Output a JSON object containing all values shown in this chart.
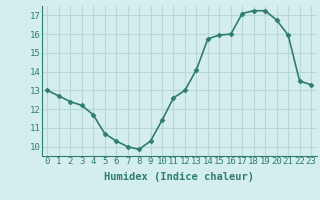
{
  "x": [
    0,
    1,
    2,
    3,
    4,
    5,
    6,
    7,
    8,
    9,
    10,
    11,
    12,
    13,
    14,
    15,
    16,
    17,
    18,
    19,
    20,
    21,
    22,
    23
  ],
  "y": [
    13.0,
    12.7,
    12.4,
    12.2,
    11.7,
    10.7,
    10.3,
    10.0,
    9.85,
    10.3,
    11.4,
    12.6,
    13.0,
    14.1,
    15.75,
    15.95,
    16.0,
    17.1,
    17.25,
    17.25,
    16.75,
    15.95,
    13.5,
    13.3
  ],
  "xlabel": "Humidex (Indice chaleur)",
  "xlim": [
    -0.5,
    23.5
  ],
  "ylim": [
    9.5,
    17.5
  ],
  "yticks": [
    10,
    11,
    12,
    13,
    14,
    15,
    16,
    17
  ],
  "xticks": [
    0,
    1,
    2,
    3,
    4,
    5,
    6,
    7,
    8,
    9,
    10,
    11,
    12,
    13,
    14,
    15,
    16,
    17,
    18,
    19,
    20,
    21,
    22,
    23
  ],
  "line_color": "#2e7d6e",
  "marker": "D",
  "marker_size": 2.5,
  "bg_color": "#d4eeee",
  "grid_color": "#b8d8d8",
  "line_width": 1.2,
  "tick_fontsize": 6.5,
  "xlabel_fontsize": 7.5
}
